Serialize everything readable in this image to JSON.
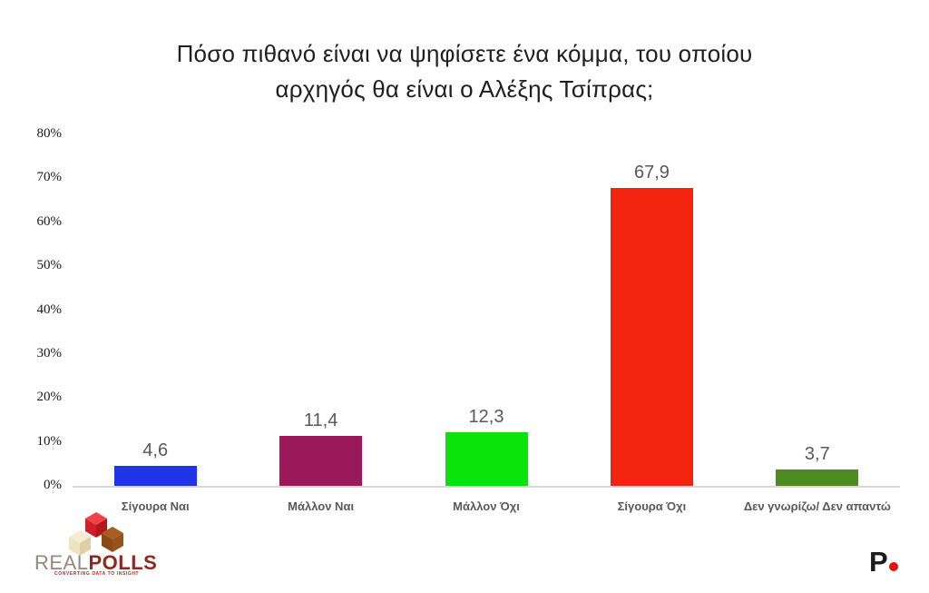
{
  "title": {
    "line1": "Πόσο πιθανό είναι να ψηφίσετε ένα κόμμα, του οποίου",
    "line2": "αρχηγός θα είναι ο Αλέξης Τσίπρας;"
  },
  "chart_data": {
    "type": "bar",
    "title": "Πόσο πιθανό είναι να ψηφίσετε ένα κόμμα, του οποίου αρχηγός θα είναι ο Αλέξης Τσίπρας;",
    "categories": [
      "Σίγουρα Ναι",
      "Μάλλον Ναι",
      "Μάλλον Όχι",
      "Σίγουρα Όχι",
      "Δεν γνωρίζω/ Δεν απαντώ"
    ],
    "values": [
      4.6,
      11.4,
      12.3,
      67.9,
      3.7
    ],
    "value_labels": [
      "4,6",
      "11,4",
      "12,3",
      "67,9",
      "3,7"
    ],
    "bar_colors": [
      "#1f35e6",
      "#99195a",
      "#09e309",
      "#f4250e",
      "#4e8b1e"
    ],
    "ylabel": "",
    "xlabel": "",
    "ylim": [
      0,
      80
    ],
    "yticks": [
      "0%",
      "10%",
      "20%",
      "30%",
      "40%",
      "50%",
      "60%",
      "70%",
      "80%"
    ],
    "grid": false,
    "legend": null,
    "value_label_color": "#595959",
    "axis_line_color": "#d8d8d8"
  },
  "footer": {
    "realpolls": {
      "brand_real": "REAL",
      "brand_polls": "POLLS",
      "tagline": "CONVERTING DATA TO INSIGHT"
    },
    "parapolitika": {
      "letter": "P"
    }
  }
}
